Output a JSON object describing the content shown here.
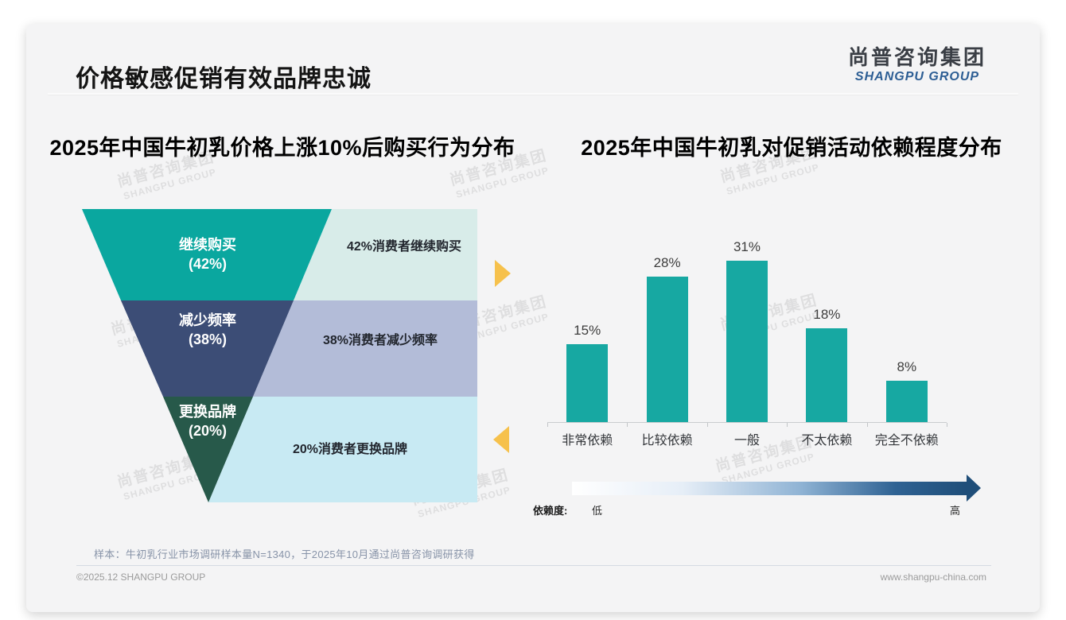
{
  "slide": {
    "title": "价格敏感促销有效品牌忠诚",
    "logo": {
      "name_cn": "尚普咨询集团",
      "name_en": "SHANGPU GROUP"
    },
    "watermark_cn": "尚普咨询集团",
    "watermark_en": "SHANGPU GROUP",
    "sample_note": "样本：牛初乳行业市场调研样本量N=1340，于2025年10月通过尚普咨询调研获得",
    "copyright": "©2025.12 SHANGPU GROUP",
    "website": "www.shangpu-china.com"
  },
  "funnel_chart": {
    "title": "2025年中国牛初乳价格上涨10%后购买行为分布",
    "arrow_color": "#f6c14c",
    "segments": [
      {
        "label": "继续购买",
        "pct_label": "(42%)",
        "value": 42,
        "annotation": "42%消费者继续购买",
        "color": "#0aa79f",
        "band_color": "#d8ece9"
      },
      {
        "label": "减少频率",
        "pct_label": "(38%)",
        "value": 38,
        "annotation": "38%消费者减少频率",
        "color": "#3c4d76",
        "band_color": "#b3bcd8"
      },
      {
        "label": "更换品牌",
        "pct_label": "(20%)",
        "value": 20,
        "annotation": "20%消费者更换品牌",
        "color": "#27594a",
        "band_color": "#c8eaf3"
      }
    ]
  },
  "bar_chart": {
    "title": "2025年中国牛初乳对促销活动依赖程度分布",
    "bar_color": "#17a8a2",
    "dependency_scale": {
      "label": "依赖度:",
      "low": "低",
      "high": "高",
      "gradient_start": "#ffffff",
      "gradient_end": "#1f4e79"
    }
  },
  "chart_data": [
    {
      "type": "funnel",
      "title": "2025年中国牛初乳价格上涨10%后购买行为分布",
      "categories": [
        "继续购买",
        "减少频率",
        "更换品牌"
      ],
      "values": [
        42,
        38,
        20
      ],
      "unit": "%",
      "annotations": [
        "42%消费者继续购买",
        "38%消费者减少频率",
        "20%消费者更换品牌"
      ]
    },
    {
      "type": "bar",
      "title": "2025年中国牛初乳对促销活动依赖程度分布",
      "categories": [
        "非常依赖",
        "比较依赖",
        "一般",
        "不太依赖",
        "完全不依赖"
      ],
      "values": [
        15,
        28,
        31,
        18,
        8
      ],
      "value_labels": [
        "15%",
        "28%",
        "31%",
        "18%",
        "8%"
      ],
      "unit": "%",
      "ylim": [
        0,
        35
      ],
      "grid": false,
      "x_axis_note": "依赖度: 低 → 高"
    }
  ]
}
